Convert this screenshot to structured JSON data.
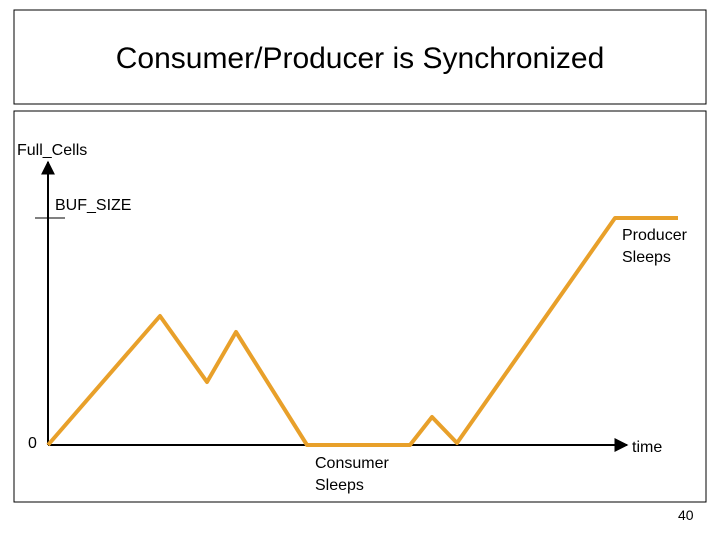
{
  "header": {
    "title": "Consumer/Producer is Synchronized"
  },
  "diagram": {
    "y_axis_label": "Full_Cells",
    "x_axis_label": "time",
    "y_marks": {
      "top": "BUF_SIZE",
      "origin": "0"
    },
    "annotations": {
      "producer": [
        "Producer",
        "Sleeps"
      ],
      "consumer": [
        "Consumer",
        "Sleeps"
      ]
    }
  },
  "footer": {
    "page_number": "40"
  }
}
